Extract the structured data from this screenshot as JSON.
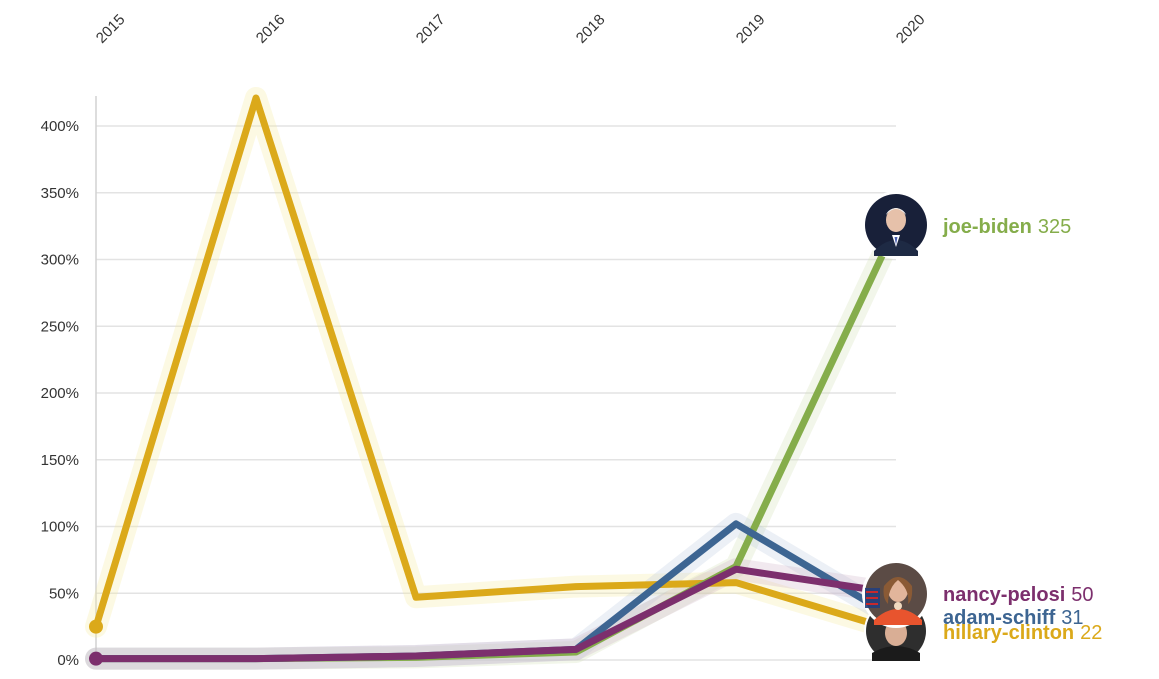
{
  "chart_data": {
    "type": "line",
    "x": [
      "2015",
      "2016",
      "2017",
      "2018",
      "2019",
      "2020"
    ],
    "ylim": [
      0,
      400
    ],
    "y_ticks": [
      "0%",
      "50%",
      "100%",
      "150%",
      "200%",
      "250%",
      "300%",
      "350%",
      "400%"
    ],
    "y_tick_values": [
      0,
      50,
      100,
      150,
      200,
      250,
      300,
      350,
      400
    ],
    "grid": true,
    "series": [
      {
        "name": "hillary-clinton",
        "color": "#dba91a",
        "glow": "#f3eb9a",
        "values": [
          25,
          421,
          47,
          55,
          58,
          22
        ],
        "label_value": "22"
      },
      {
        "name": "joe-biden",
        "color": "#85ad4b",
        "glow": "#cfe0b5",
        "values": [
          1,
          1,
          2,
          6,
          70,
          325
        ],
        "label_value": "325"
      },
      {
        "name": "adam-schiff",
        "color": "#3d6592",
        "glow": "#b9c9dd",
        "values": [
          1,
          1,
          3,
          8,
          102,
          31
        ],
        "label_value": "31"
      },
      {
        "name": "nancy-pelosi",
        "color": "#7c2f6d",
        "glow": "#cdb0c6",
        "values": [
          1,
          1,
          3,
          8,
          68,
          50
        ],
        "label_value": "50"
      }
    ],
    "avatar_icons": [
      "joe-biden-avatar",
      "nancy-pelosi-avatar",
      "hillary-clinton-avatar"
    ]
  }
}
